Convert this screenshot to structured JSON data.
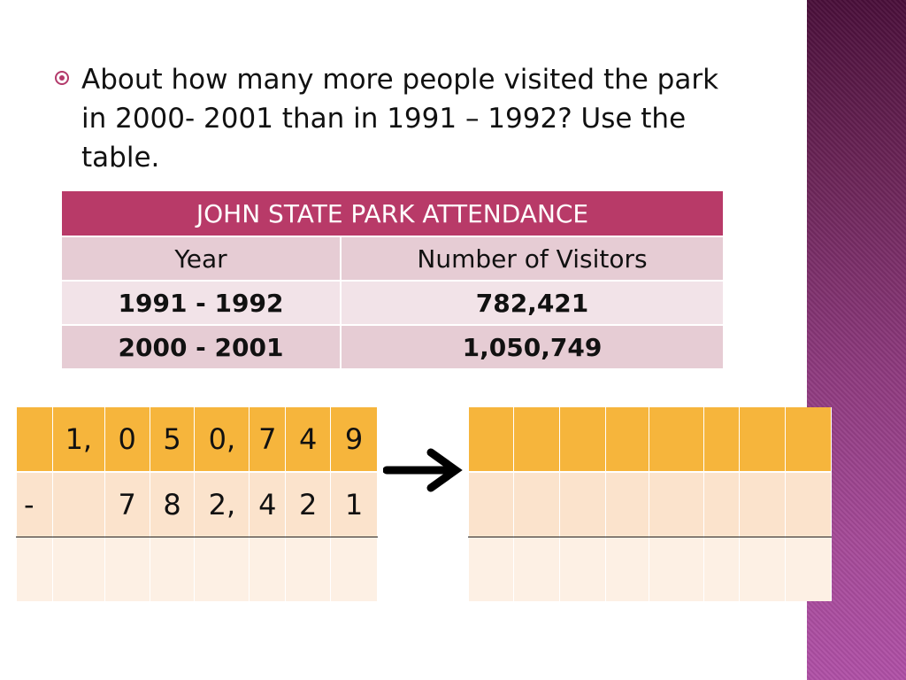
{
  "question": "About how many more people visited the park in 2000- 2001 than in 1991 – 1992? Use the table.",
  "attendance_table": {
    "title": "JOHN STATE PARK ATTENDANCE",
    "headers": [
      "Year",
      "Number of Visitors"
    ],
    "rows": [
      [
        "1991 - 1992",
        "782,421"
      ],
      [
        "2000 - 2001",
        "1,050,749"
      ]
    ]
  },
  "subtraction_grid": {
    "top_row": [
      "",
      "1,",
      "0",
      "5",
      "0,",
      "7",
      "4",
      "9"
    ],
    "second_row": [
      "-",
      "",
      "7",
      "8",
      "2,",
      "4",
      "2",
      "1"
    ],
    "answer_row": [
      "",
      "",
      "",
      "",
      "",
      "",
      "",
      ""
    ]
  },
  "answer_grid": {
    "rows": [
      [
        "",
        "",
        "",
        "",
        "",
        "",
        "",
        ""
      ],
      [
        "",
        "",
        "",
        "",
        "",
        "",
        "",
        ""
      ],
      [
        "",
        "",
        "",
        "",
        "",
        "",
        "",
        ""
      ]
    ]
  },
  "icons": {
    "bullet": "target-bullet-icon",
    "arrow": "right-arrow-icon"
  },
  "colors": {
    "table_title_bg": "#b83a68",
    "grid_header_bg": "#f6b53c",
    "band_dark": "#4a0f3a",
    "band_light": "#b050a6"
  }
}
